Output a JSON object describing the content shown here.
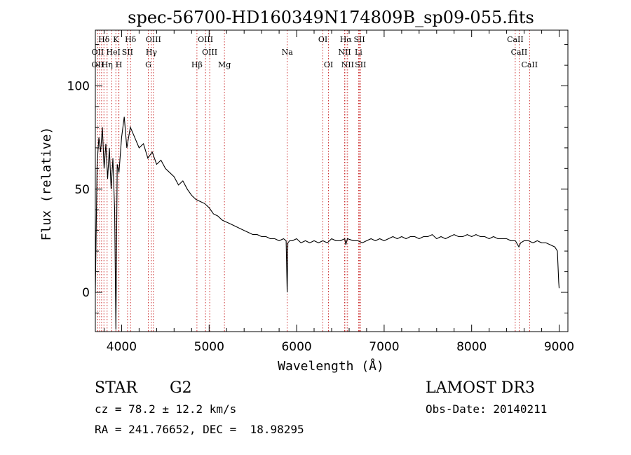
{
  "chart_data": {
    "type": "line",
    "title": "spec-56700-HD160349N174809B_sp09-055.fits",
    "xlabel": "Wavelength (Å)",
    "ylabel": "Flux (relative)",
    "xlim": [
      3700,
      9100
    ],
    "ylim": [
      -19,
      127
    ],
    "x_ticks": [
      4000,
      5000,
      6000,
      7000,
      8000,
      9000
    ],
    "y_ticks": [
      0,
      50,
      100
    ],
    "x_tick_labels": [
      "4000",
      "5000",
      "6000",
      "7000",
      "8000",
      "9000"
    ],
    "y_tick_labels": [
      "0",
      "50",
      "100"
    ],
    "grid": false,
    "series": [
      {
        "x": [
          3700,
          3720,
          3740,
          3760,
          3780,
          3800,
          3820,
          3840,
          3860,
          3880,
          3900,
          3920,
          3935,
          3950,
          3970,
          4000,
          4030,
          4060,
          4100,
          4150,
          4200,
          4250,
          4300,
          4350,
          4400,
          4450,
          4500,
          4550,
          4600,
          4650,
          4700,
          4750,
          4800,
          4850,
          4900,
          4950,
          5000,
          5050,
          5100,
          5150,
          5200,
          5250,
          5300,
          5350,
          5400,
          5450,
          5500,
          5550,
          5600,
          5650,
          5700,
          5750,
          5800,
          5850,
          5880,
          5892,
          5900,
          5920,
          5950,
          6000,
          6050,
          6100,
          6150,
          6200,
          6250,
          6300,
          6350,
          6400,
          6450,
          6500,
          6550,
          6563,
          6580,
          6650,
          6700,
          6750,
          6800,
          6850,
          6900,
          6950,
          7000,
          7050,
          7100,
          7150,
          7200,
          7250,
          7300,
          7350,
          7400,
          7450,
          7500,
          7550,
          7600,
          7650,
          7700,
          7750,
          7800,
          7850,
          7900,
          7950,
          8000,
          8050,
          8100,
          8150,
          8200,
          8250,
          8300,
          8350,
          8400,
          8450,
          8500,
          8540,
          8560,
          8600,
          8650,
          8700,
          8750,
          8800,
          8850,
          8900,
          8950,
          8980,
          8995,
          9000
        ],
        "y": [
          0,
          62,
          75,
          68,
          80,
          60,
          72,
          55,
          70,
          50,
          65,
          40,
          -18,
          62,
          58,
          75,
          85,
          70,
          80,
          75,
          70,
          72,
          65,
          68,
          62,
          64,
          60,
          58,
          56,
          52,
          54,
          50,
          47,
          45,
          44,
          43,
          41,
          38,
          37,
          35,
          34,
          33,
          32,
          31,
          30,
          29,
          28,
          28,
          27,
          27,
          26,
          26,
          25,
          26,
          25,
          0,
          24,
          25,
          25,
          26,
          24,
          25,
          24,
          25,
          24,
          25,
          24,
          26,
          25,
          25,
          26,
          23,
          26,
          25,
          25,
          24,
          25,
          26,
          25,
          26,
          25,
          26,
          27,
          26,
          27,
          26,
          27,
          27,
          26,
          27,
          27,
          28,
          26,
          27,
          26,
          27,
          28,
          27,
          27,
          28,
          27,
          28,
          27,
          27,
          26,
          27,
          26,
          26,
          26,
          25,
          25,
          22,
          24,
          25,
          25,
          24,
          25,
          24,
          24,
          23,
          22,
          20,
          5,
          2
        ]
      }
    ],
    "annotations": [
      {
        "label": "Hδ",
        "x": 3798,
        "row": 1
      },
      {
        "label": "K",
        "x": 3934,
        "row": 1
      },
      {
        "label": "Hδ",
        "x": 4102,
        "row": 1
      },
      {
        "label": "OIII",
        "x": 4363,
        "row": 1
      },
      {
        "label": "OIII",
        "x": 4959,
        "row": 1
      },
      {
        "label": "OI",
        "x": 6300,
        "row": 1
      },
      {
        "label": "Hα",
        "x": 6563,
        "row": 1
      },
      {
        "label": "SII",
        "x": 6717,
        "row": 1
      },
      {
        "label": "CaII",
        "x": 8498,
        "row": 1
      },
      {
        "label": "OII",
        "x": 3727,
        "row": 2
      },
      {
        "label": "He",
        "x": 3889,
        "row": 2
      },
      {
        "label": "I",
        "x": 3970,
        "row": 2
      },
      {
        "label": "SII",
        "x": 4068,
        "row": 2
      },
      {
        "label": "Hγ",
        "x": 4340,
        "row": 2
      },
      {
        "label": "OIII",
        "x": 5007,
        "row": 2
      },
      {
        "label": "Na",
        "x": 5893,
        "row": 2
      },
      {
        "label": "NII",
        "x": 6548,
        "row": 2
      },
      {
        "label": "Li",
        "x": 6708,
        "row": 2
      },
      {
        "label": "CaII",
        "x": 8542,
        "row": 2
      },
      {
        "label": "OII",
        "x": 3727,
        "row": 3
      },
      {
        "label": "Hη",
        "x": 3835,
        "row": 3
      },
      {
        "label": "H",
        "x": 3968,
        "row": 3
      },
      {
        "label": "G",
        "x": 4305,
        "row": 3
      },
      {
        "label": "Hβ",
        "x": 4861,
        "row": 3
      },
      {
        "label": "Mg",
        "x": 5175,
        "row": 3
      },
      {
        "label": "OI",
        "x": 6364,
        "row": 3
      },
      {
        "label": "NII",
        "x": 6583,
        "row": 3
      },
      {
        "label": "SII",
        "x": 6731,
        "row": 3
      },
      {
        "label": "CaII",
        "x": 8662,
        "row": 3
      }
    ],
    "line_markers": [
      3727,
      3750,
      3771,
      3798,
      3835,
      3889,
      3934,
      3968,
      3970,
      4068,
      4102,
      4305,
      4340,
      4363,
      4861,
      4959,
      5007,
      5175,
      5893,
      6300,
      6364,
      6548,
      6563,
      6583,
      6708,
      6717,
      6731,
      8498,
      8542,
      8662
    ]
  },
  "footer": {
    "object_class": "STAR",
    "subclass": "G2",
    "survey": "LAMOST DR3",
    "redshift": "cz = 78.2 ± 12.2 km/s",
    "obs_date": "Obs-Date: 20140211",
    "coordinates": "RA = 241.76652, DEC =  18.98295"
  }
}
